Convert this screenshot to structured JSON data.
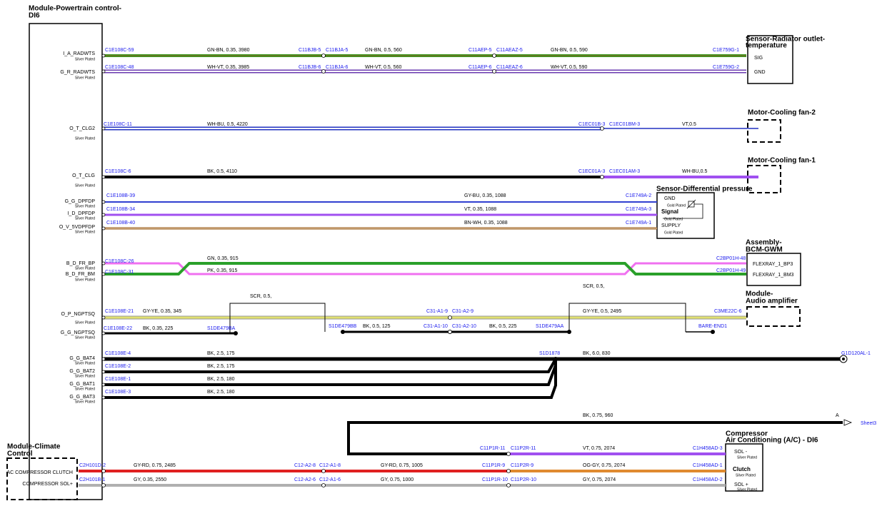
{
  "pcm": {
    "title": [
      "Module-Powertrain control-",
      "DI6"
    ],
    "pins": [
      {
        "name": "I_A_RADWTS",
        "plating": "Silver Plated"
      },
      {
        "name": "G_R_RADWTS",
        "plating": "Silver Plated"
      },
      {
        "name": "O_T_CLG2",
        "plating": "Silver Plated"
      },
      {
        "name": "O_T_CLG",
        "plating": "Silver Plated"
      },
      {
        "name": "G_G_DPFDP",
        "plating": "Silver Plated"
      },
      {
        "name": "I_D_DPFDP",
        "plating": "Silver Plated"
      },
      {
        "name": "O_V_5VDPFDP",
        "plating": "Silver Plated"
      },
      {
        "name": "B_D_FR_BP",
        "plating": "Silver Plated"
      },
      {
        "name": "B_D_FR_BM",
        "plating": "Silver Plated"
      },
      {
        "name": "O_P_NGPTSQ",
        "plating": "Silver Plated"
      },
      {
        "name": "G_G_NGPTSQ",
        "plating": "Silver Plated"
      },
      {
        "name": "G_G_BAT4",
        "plating": "Silver Plated"
      },
      {
        "name": "G_G_BAT2",
        "plating": "Silver Plated"
      },
      {
        "name": "G_G_BAT1",
        "plating": "Silver Plated"
      },
      {
        "name": "G_G_BAT3",
        "plating": "Silver Plated"
      }
    ]
  },
  "devices": [
    {
      "title": [
        "Sensor-Radiator outlet-",
        "temperature"
      ],
      "pins": [
        {
          "name": "SIG"
        },
        {
          "name": "GND"
        }
      ]
    },
    {
      "title": [
        "Motor-Cooling fan-2"
      ]
    },
    {
      "title": [
        "Motor-Cooling fan-1"
      ]
    },
    {
      "title": [
        "Sensor-Differential pressure"
      ],
      "pins": [
        {
          "name": "GND",
          "plating": "Gold Plated"
        },
        {
          "name": "Signal",
          "plating": "Gold Plated"
        },
        {
          "name": "SUPPLY",
          "plating": "Gold Plated"
        }
      ]
    },
    {
      "title": [
        "Assembly-",
        "BCM-GWM"
      ],
      "pins": [
        {
          "name": "FLEXRAY_1_BP3"
        },
        {
          "name": "FLEXRAY_1_BM3"
        }
      ]
    },
    {
      "title": [
        "Module-",
        "Audio amplifier"
      ]
    },
    {
      "title": [
        "Compressor",
        "Air Conditioning (A/C) - DI6"
      ],
      "pins": [
        {
          "name": "SOL -",
          "plating": "Silver Plated"
        },
        {
          "name": "Clutch",
          "plating": "Silver Plated"
        },
        {
          "name": "SOL +",
          "plating": "Silver Plated"
        }
      ]
    },
    {
      "title": [
        "Module-Climate",
        "Control"
      ],
      "pins": [
        {
          "name": "AC COMPRESSOR CLUTCH"
        },
        {
          "name": "COMPRESSOR SOL+"
        }
      ]
    }
  ],
  "wires": [
    {
      "connectors": [
        "C1E108C-59",
        "C11BJB-5",
        "C11BJA-5",
        "C11AEP-5",
        "C11AEAZ-5",
        "C1E759G-1"
      ],
      "specs": [
        "GN-BN, 0.35, 3980",
        "GN-BN, 0.5, 560",
        "GN-BN, 0.5, 590"
      ]
    },
    {
      "connectors": [
        "C1E108C-48",
        "C11BJB-6",
        "C11BJA-6",
        "C11AEP-6",
        "C11AEAZ-6",
        "C1E759G-2"
      ],
      "specs": [
        "WH-VT, 0.35, 3985",
        "WH-VT, 0.5, 560",
        "WH-VT, 0.5, 590"
      ]
    },
    {
      "connectors": [
        "C1E108C-11",
        "C1EC01B-3",
        "C1EC01BM-3"
      ],
      "specs": [
        "WH-BU, 0.5, 4220",
        "VT,0.5"
      ]
    },
    {
      "connectors": [
        "C1E108C-6",
        "C1EC01A-3",
        "C1EC01AM-3"
      ],
      "specs": [
        "BK, 0.5, 4110",
        "WH-BU,0.5"
      ]
    },
    {
      "connectors": [
        "C1E108B-39",
        "C1E749A-2"
      ],
      "specs": [
        "GY-BU, 0.35, 1088"
      ]
    },
    {
      "connectors": [
        "C1E108B-34",
        "C1E749A-3"
      ],
      "specs": [
        "VT, 0.35, 1088"
      ]
    },
    {
      "connectors": [
        "C1E108B-40",
        "C1E749A-1"
      ],
      "specs": [
        "BN-WH, 0.35, 1088"
      ]
    },
    {
      "connectors": [
        "C1E108C-26",
        "C2BP01H-48"
      ],
      "specs": [
        "GN, 0.35, 915"
      ]
    },
    {
      "connectors": [
        "C1E108C-31",
        "C2BP01H-49"
      ],
      "specs": [
        "PK, 0.35, 915"
      ]
    },
    {
      "connectors": [
        "C1E108E-21",
        "C31-A1-9",
        "C31-A2-9",
        "C3ME22C-6"
      ],
      "specs": [
        "GY-YE, 0.35, 345",
        "GY-YE, 0.5, 2495"
      ]
    },
    {
      "connectors": [
        "C1E108E-22",
        "S1DE479BA",
        "S1DE479BB",
        "C31-A1-10",
        "C31-A2-10",
        "S1DE479AA",
        "BARE-END1"
      ],
      "specs": [
        "BK, 0.35, 225",
        "BK, 0.5, 125",
        "BK, 0.5, 225"
      ]
    },
    {
      "connectors": [
        "C1E108E-4",
        "S1D1878",
        "G1D120AL-1"
      ],
      "specs": [
        "BK, 2.5, 175",
        "BK, 6.0, 830"
      ]
    },
    {
      "connectors": [
        "C1E108E-2"
      ],
      "specs": [
        "BK, 2.5, 175"
      ]
    },
    {
      "connectors": [
        "C1E108E-1"
      ],
      "specs": [
        "BK, 2.5, 180"
      ]
    },
    {
      "connectors": [
        "C1E108E-3"
      ],
      "specs": [
        "BK, 2.5, 180"
      ]
    },
    {
      "specs": [
        "BK, 0.75, 960"
      ]
    },
    {
      "connectors": [
        "C11P1R-11",
        "C11P2R-11",
        "C1H458AD-3"
      ],
      "specs": [
        "VT, 0.75, 2074"
      ]
    },
    {
      "connectors": [
        "C2H101D-2",
        "C12-A2-8",
        "C12-A1-8",
        "C11P1R-9",
        "C11P2R-9",
        "C1H458AD-1"
      ],
      "specs": [
        "GY-RD, 0.75, 2485",
        "GY-RD, 0.75, 1005",
        "OG-GY, 0.75, 2074"
      ]
    },
    {
      "connectors": [
        "C2H101B-1",
        "C12-A2-6",
        "C12-A1-6",
        "C11P1R-10",
        "C11P2R-10",
        "C1H458AD-2"
      ],
      "specs": [
        "GY, 0.35, 2550",
        "GY, 0.75, 1000",
        "GY, 0.75, 2074"
      ]
    }
  ],
  "shields": [
    "SCR, 0.5,",
    "SCR, 0.5,"
  ],
  "offpage": {
    "marker": "A",
    "sheet": "Sheet3"
  }
}
